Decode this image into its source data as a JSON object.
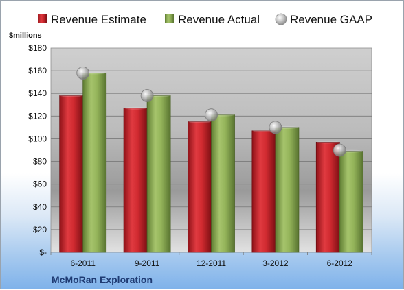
{
  "colors": {
    "estimate": "#c8202a",
    "actual": "#8cae56",
    "gaap": "#b8b8b8",
    "company_text": "#1f3b73"
  },
  "chart_data": {
    "type": "bar",
    "categories": [
      "6-2011",
      "9-2011",
      "12-2011",
      "3-2012",
      "6-2012"
    ],
    "series": [
      {
        "name": "Revenue Estimate",
        "values": [
          138,
          127,
          115,
          107,
          97
        ]
      },
      {
        "name": "Revenue Actual",
        "values": [
          158,
          138,
          121,
          110,
          89
        ]
      },
      {
        "name": "Revenue GAAP",
        "values": [
          158,
          138,
          121,
          110,
          90
        ],
        "marker": "circle"
      }
    ],
    "ylabel": "$millions",
    "ylim": [
      0,
      180
    ],
    "ytick_step": 20,
    "ytick_labels": [
      "$-",
      "$20",
      "$40",
      "$60",
      "$80",
      "$100",
      "$120",
      "$140",
      "$160",
      "$180"
    ],
    "grid": true,
    "legend_position": "top",
    "company": "McMoRan Exploration"
  }
}
